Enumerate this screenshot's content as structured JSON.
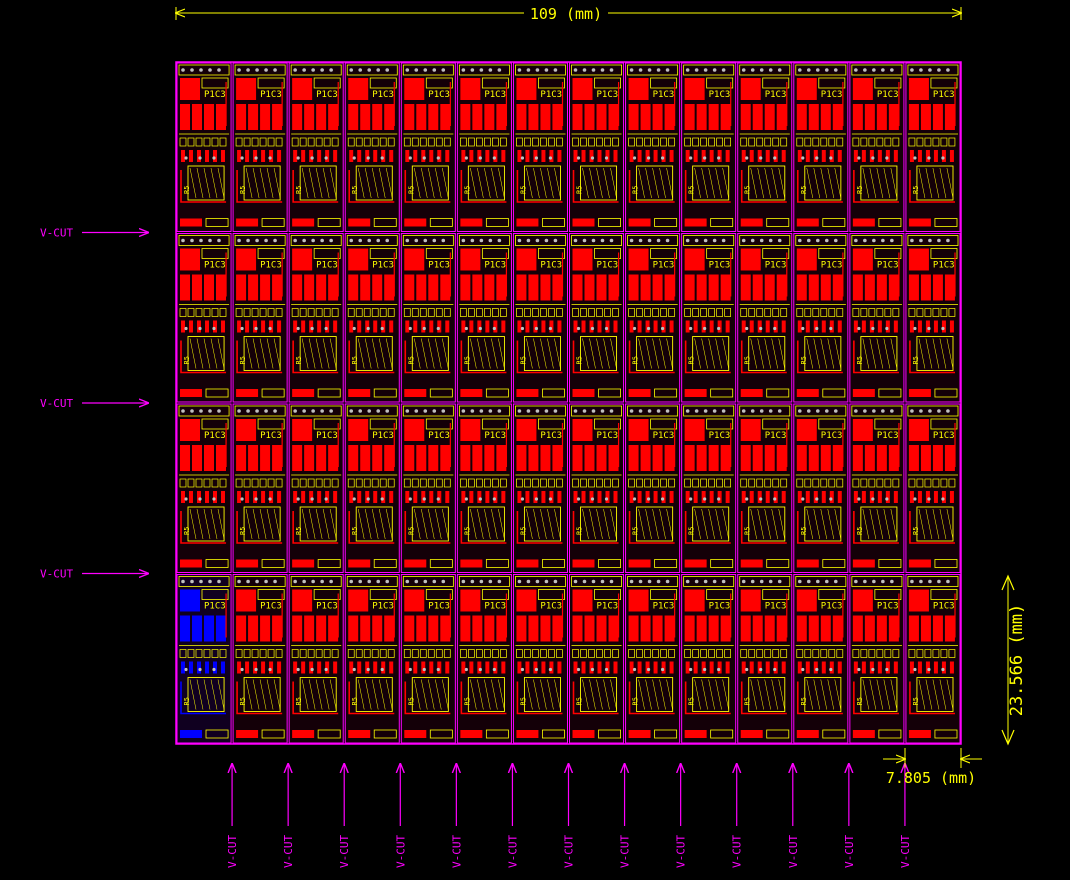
{
  "panel": {
    "columns": 14,
    "rows": 4,
    "highlight_cell": {
      "row": 3,
      "col": 0
    }
  },
  "dimensions": {
    "width_label": "109 (mm)",
    "height_label": "23.566 (mm)",
    "pitch_label": "7.805 (mm)"
  },
  "vcut": {
    "label": "V-CUT",
    "row_cut_count": 3,
    "col_cut_count": 13
  },
  "board": {
    "silkscreen_ref": "P1C3",
    "silkscreen_ref2": "R5"
  },
  "colors": {
    "background": "#000000",
    "dimension": "#ffff00",
    "vcut": "#ff00ff",
    "outline": "#ff00ff",
    "copper_top": "#ff0000",
    "copper_bottom": "#0000ff",
    "silkscreen": "#ffff00",
    "vias": "#c0c0c0"
  }
}
